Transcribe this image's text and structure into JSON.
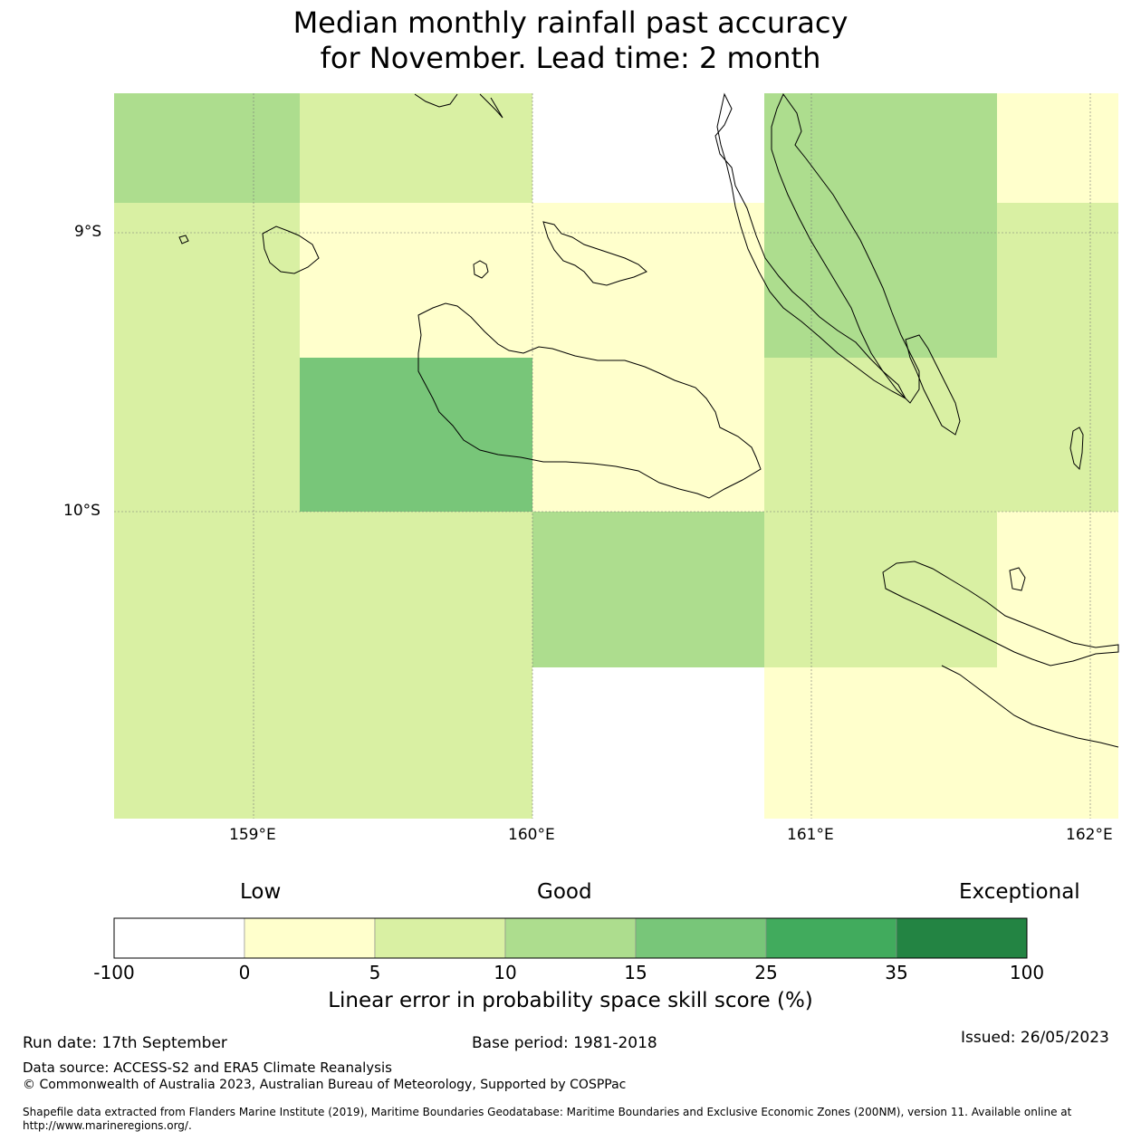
{
  "title": {
    "line1": "Median monthly rainfall past accuracy",
    "line2": "for November. Lead time: 2 month"
  },
  "map": {
    "lat_labels": [
      "9°S",
      "10°S"
    ],
    "lon_labels": [
      "159°E",
      "160°E",
      "161°E",
      "162°E"
    ],
    "cells": [
      {
        "bin": "10-15"
      },
      {
        "bin": "5-10"
      },
      {
        "bin": "none"
      },
      {
        "bin": "10-15"
      },
      {
        "bin": "0-5"
      },
      {
        "bin": "5-10"
      },
      {
        "bin": "0-5"
      },
      {
        "bin": "0-5"
      },
      {
        "bin": "10-15"
      },
      {
        "bin": "5-10"
      },
      {
        "bin": "5-10"
      },
      {
        "bin": "15-25"
      },
      {
        "bin": "0-5"
      },
      {
        "bin": "5-10"
      },
      {
        "bin": "5-10"
      },
      {
        "bin": "5-10"
      },
      {
        "bin": "5-10"
      },
      {
        "bin": "10-15"
      },
      {
        "bin": "5-10"
      },
      {
        "bin": "0-5"
      },
      {
        "bin": "5-10"
      },
      {
        "bin": "5-10"
      },
      {
        "bin": "none"
      },
      {
        "bin": "0-5"
      },
      {
        "bin": "0-5"
      }
    ]
  },
  "colorbar": {
    "low": "Low",
    "good": "Good",
    "exceptional": "Exceptional",
    "ticks": [
      "-100",
      "0",
      "5",
      "10",
      "15",
      "25",
      "35",
      "100"
    ],
    "colors": [
      "#ffffff",
      "#ffffcc",
      "#d9f0a3",
      "#addd8e",
      "#78c679",
      "#41ab5d",
      "#238443"
    ],
    "label": "Linear error in probability space skill score (%)"
  },
  "footer": {
    "run_date": "Run date: 17th September",
    "base_period": "Base period: 1981-2018",
    "issued": "Issued: 26/05/2023",
    "data_source": "Data source: ACCESS-S2 and ERA5 Climate Reanalysis",
    "copyright": "© Commonwealth of Australia 2023, Australian Bureau of Meteorology, Supported by COSPPac",
    "shapefile_line1": "Shapefile data extracted from Flanders Marine Institute (2019), Maritime Boundaries Geodatabase: Maritime Boundaries and Exclusive Economic Zones (200NM), version 11. Available online at",
    "shapefile_line2": "http://www.marineregions.org/."
  }
}
